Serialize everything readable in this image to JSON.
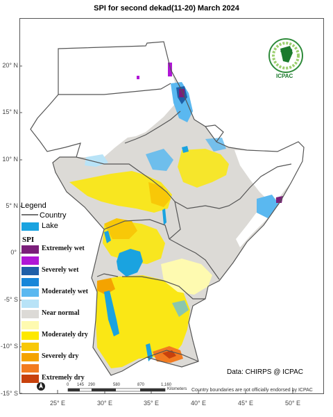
{
  "title": "SPI  for second dekad(11-20) March 2024",
  "lat_labels": [
    "20° N",
    "15° N",
    "10° N",
    "5° N",
    "0°",
    "-5° S",
    "-10° S",
    "-15° S"
  ],
  "lon_labels": [
    "25° E",
    "30° E",
    "35° E",
    "40° E",
    "45° E",
    "50° E"
  ],
  "legend": {
    "title": "Legend",
    "country_label": "Country",
    "lake_label": "Lake",
    "lake_color": "#1aa3e0",
    "spi_heading": "SPI",
    "classes": [
      {
        "label": "Extremely wet",
        "color": "#7b1f7a"
      },
      {
        "label": "",
        "color": "#b017d6"
      },
      {
        "label": "Severely wet",
        "color": "#1f5fa8"
      },
      {
        "label": "",
        "color": "#1786d9"
      },
      {
        "label": "Moderately wet",
        "color": "#5ab8f0"
      },
      {
        "label": "",
        "color": "#b8e3f7"
      },
      {
        "label": "Near normal",
        "color": "#dcdad6"
      },
      {
        "label": "",
        "color": "#fefab0"
      },
      {
        "label": "Moderately dry",
        "color": "#fde800"
      },
      {
        "label": "",
        "color": "#f8c808"
      },
      {
        "label": "Severely dry",
        "color": "#f4a300"
      },
      {
        "label": "",
        "color": "#f27b20"
      },
      {
        "label": "Extremely dry",
        "color": "#c8410c"
      }
    ]
  },
  "credit": "Data: CHIRPS @ ICPAC",
  "disclaimer": "Country boundaries are not officially endorsed by ICPAC",
  "scale_bar": {
    "ticks": [
      "0",
      "145",
      "290",
      "580",
      "870",
      "1,160"
    ],
    "unit": "Kilometers"
  },
  "logo": {
    "top_text": "IGAD",
    "bottom_text": "ICPAC"
  },
  "north_arrow": "north-arrow"
}
